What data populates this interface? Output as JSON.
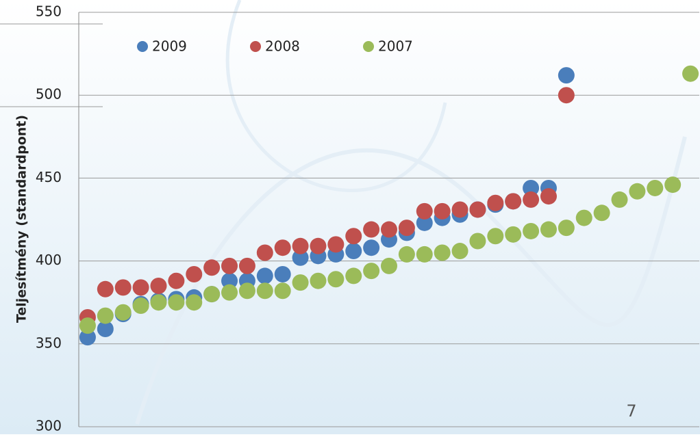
{
  "chart_data": {
    "type": "scatter",
    "y_label": "Teljesítmény (standardpont)",
    "x": [
      1,
      2,
      3,
      4,
      5,
      6,
      7,
      8,
      9,
      10,
      11,
      12,
      13,
      14,
      15,
      16,
      17,
      18,
      19,
      20,
      21,
      22,
      23,
      24,
      25,
      26,
      27,
      28,
      29,
      30,
      31,
      32,
      33,
      34,
      35
    ],
    "xlim": [
      0.5,
      35.5
    ],
    "ylim": [
      300,
      550
    ],
    "yticks": [
      300,
      350,
      400,
      450,
      500,
      550
    ],
    "grid": true,
    "legend": "top-left",
    "series": [
      {
        "name": "2009",
        "color": "#4a7ebb",
        "values": [
          354,
          359,
          368,
          374,
          376,
          377,
          378,
          380,
          388,
          388,
          391,
          392,
          402,
          403,
          404,
          406,
          408,
          413,
          417,
          423,
          426,
          428,
          431,
          434,
          436,
          444,
          444,
          512,
          null,
          null,
          null,
          null,
          null,
          null,
          null
        ]
      },
      {
        "name": "2008",
        "color": "#c0504d",
        "values": [
          366,
          383,
          384,
          384,
          385,
          388,
          392,
          396,
          397,
          397,
          405,
          408,
          409,
          409,
          410,
          415,
          419,
          419,
          420,
          430,
          430,
          431,
          431,
          435,
          436,
          437,
          439,
          500,
          null,
          null,
          null,
          null,
          null,
          null,
          null
        ]
      },
      {
        "name": "2007",
        "color": "#9bbb59",
        "values": [
          361,
          367,
          369,
          373,
          375,
          375,
          375,
          380,
          381,
          382,
          382,
          382,
          387,
          388,
          389,
          391,
          394,
          397,
          404,
          404,
          405,
          406,
          412,
          415,
          416,
          418,
          419,
          420,
          426,
          429,
          437,
          442,
          444,
          446,
          513
        ]
      }
    ]
  },
  "page_number": "7"
}
